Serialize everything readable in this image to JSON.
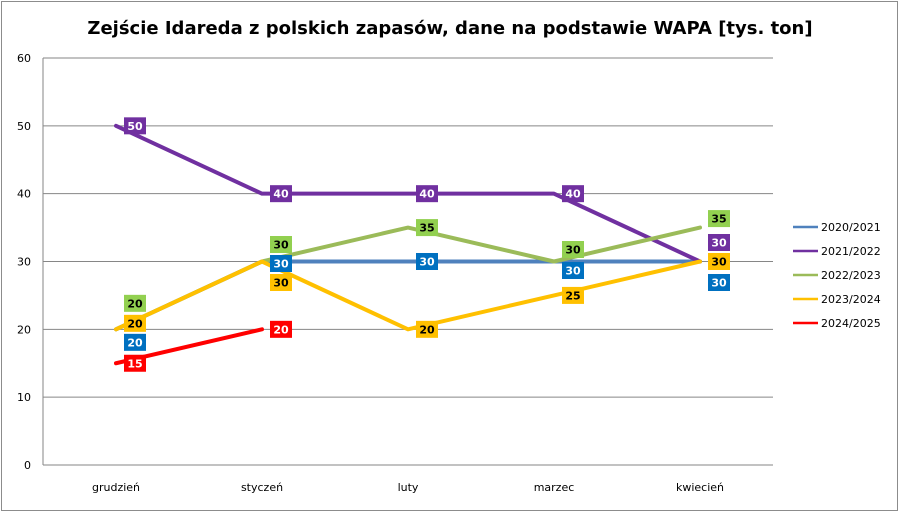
{
  "chart_data": {
    "type": "line",
    "title": "Zejście Idareda z polskich zapasów,  dane na podstawie WAPA [tys. ton]",
    "xlabel": "",
    "ylabel": "",
    "categories": [
      "grudzień",
      "styczeń",
      "luty",
      "marzec",
      "kwiecień"
    ],
    "ylim": [
      0,
      60
    ],
    "yticks": [
      "0",
      "10",
      "20",
      "30",
      "40",
      "50",
      "60"
    ],
    "grid": true,
    "legend": "right",
    "series": [
      {
        "name": "2020/2021",
        "color": "#4f81bd",
        "label_color": "#0070c0",
        "label_text_color": "#ffffff",
        "values": [
          20,
          30,
          30,
          30,
          30
        ]
      },
      {
        "name": "2021/2022",
        "color": "#7030a0",
        "label_color": "#7030a0",
        "label_text_color": "#ffffff",
        "values": [
          50,
          40,
          40,
          40,
          30
        ]
      },
      {
        "name": "2022/2023",
        "color": "#9bbb59",
        "label_color": "#92d050",
        "label_text_color": "#000000",
        "values": [
          20,
          30,
          35,
          30,
          35
        ]
      },
      {
        "name": "2023/2024",
        "color": "#ffc000",
        "label_color": "#ffc000",
        "label_text_color": "#000000",
        "values": [
          20,
          30,
          20,
          25,
          30
        ]
      },
      {
        "name": "2024/2025",
        "color": "#ff0000",
        "label_color": "#ff0000",
        "label_text_color": "#ffffff",
        "values": [
          15,
          20,
          null,
          null,
          null
        ]
      }
    ]
  }
}
